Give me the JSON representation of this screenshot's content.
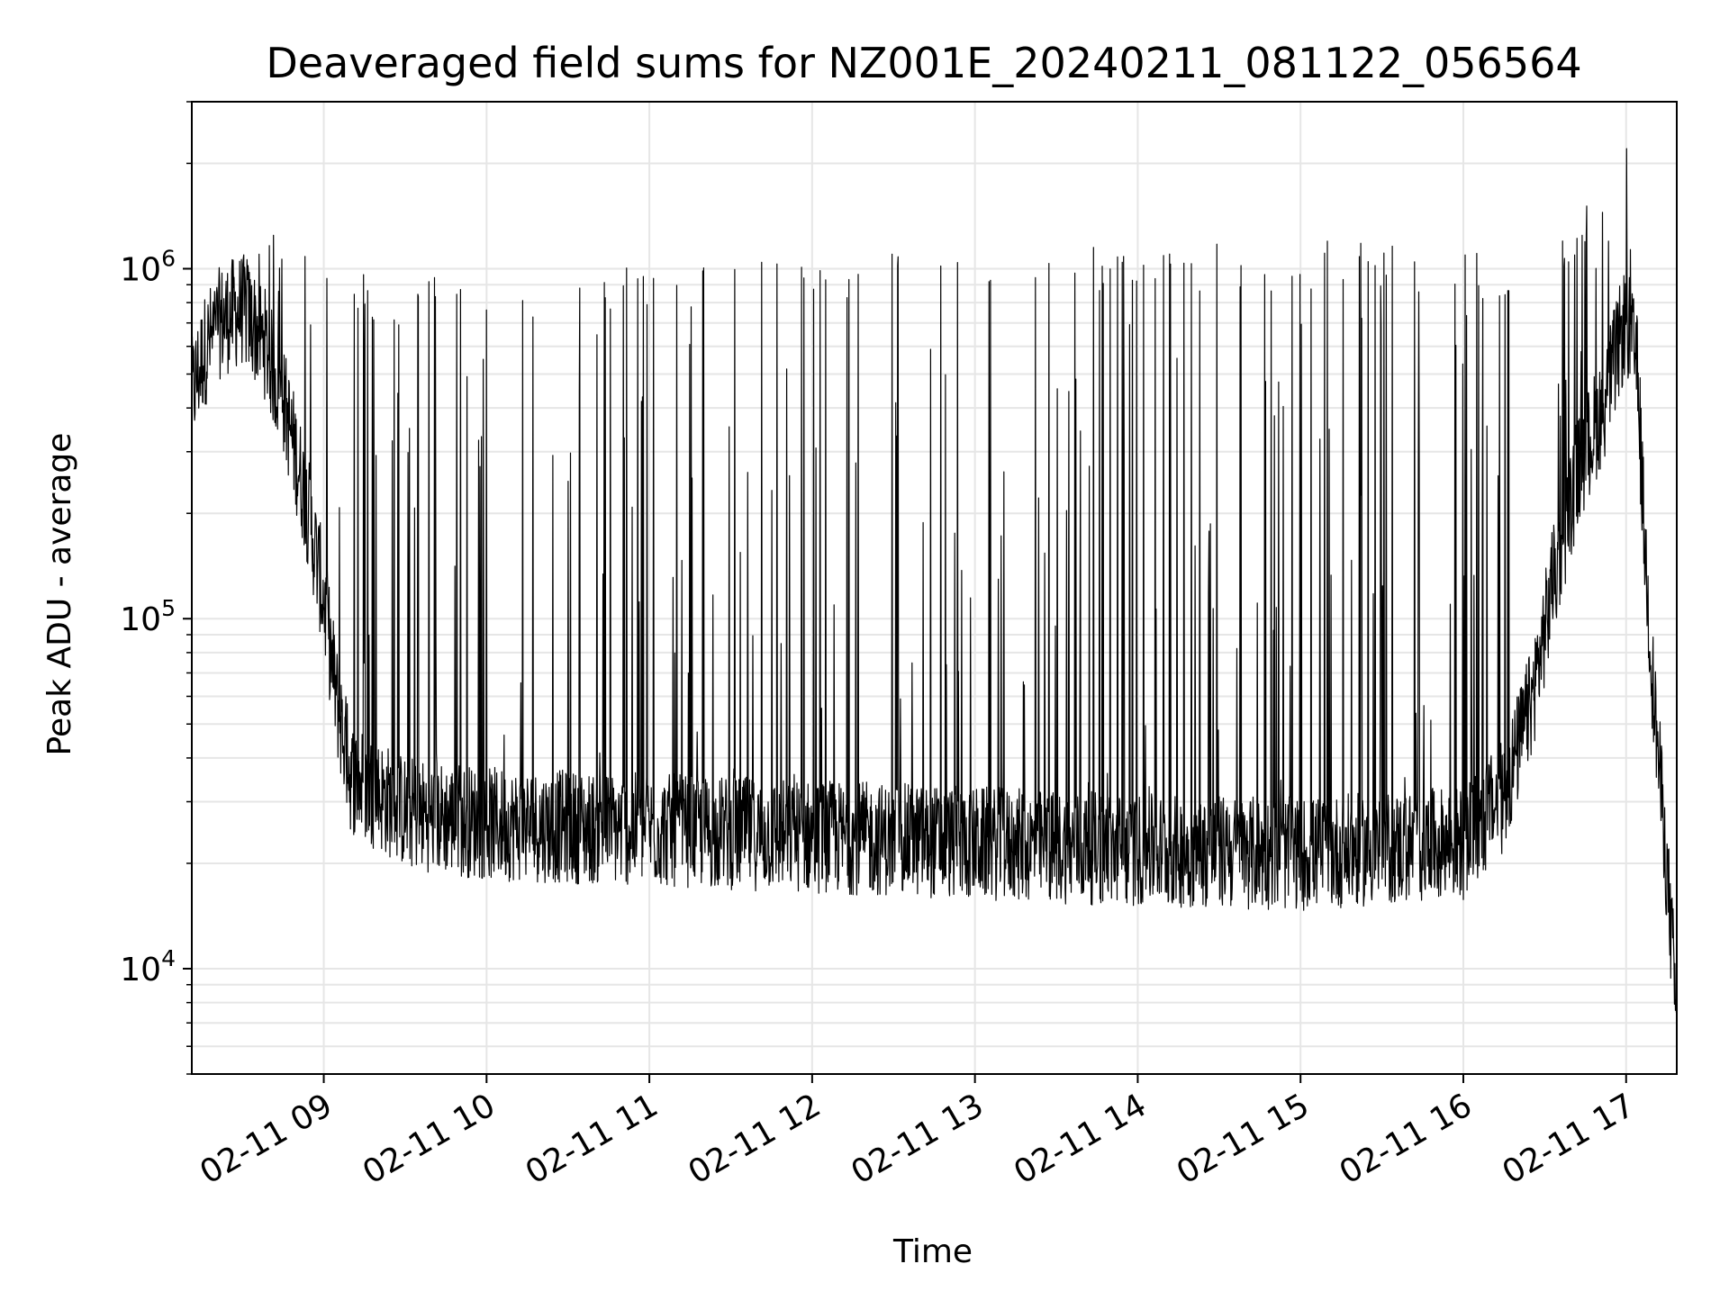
{
  "chart_data": {
    "type": "line",
    "title": "Deaveraged field sums for NZ001E_20240211_081122_056564",
    "xlabel": "Time",
    "ylabel": "Peak ADU - average",
    "x_tick_labels": [
      "02-11 09",
      "02-11 10",
      "02-11 11",
      "02-11 12",
      "02-11 13",
      "02-11 14",
      "02-11 15",
      "02-11 16",
      "02-11 17"
    ],
    "x_ticks": [
      "2024-02-11T09:00",
      "2024-02-11T10:00",
      "2024-02-11T11:00",
      "2024-02-11T12:00",
      "2024-02-11T13:00",
      "2024-02-11T14:00",
      "2024-02-11T15:00",
      "2024-02-11T16:00",
      "2024-02-11T17:00"
    ],
    "xlim": [
      "2024-02-11T08:11:22",
      "2024-02-11T17:18:40"
    ],
    "y_scale": "log",
    "ylim": [
      5000,
      3000000
    ],
    "y_ticks": [
      {
        "value": 10000,
        "base": "10",
        "exp": "4"
      },
      {
        "value": 100000,
        "base": "10",
        "exp": "5"
      },
      {
        "value": 1000000,
        "base": "10",
        "exp": "6"
      }
    ],
    "grid": true,
    "line_color": "#000000",
    "series": [
      {
        "envelope": [
          {
            "t": "2024-02-11T08:11:22",
            "base": 420000,
            "peak": 460000
          },
          {
            "t": "2024-02-11T08:16:00",
            "base": 560000,
            "peak": 640000
          },
          {
            "t": "2024-02-11T08:22:00",
            "base": 680000,
            "peak": 820000
          },
          {
            "t": "2024-02-11T08:30:00",
            "base": 740000,
            "peak": 1100000
          },
          {
            "t": "2024-02-11T08:38:00",
            "base": 600000,
            "peak": 1200000
          },
          {
            "t": "2024-02-11T08:46:00",
            "base": 380000,
            "peak": 1300000
          },
          {
            "t": "2024-02-11T08:54:00",
            "base": 200000,
            "peak": 1250000
          },
          {
            "t": "2024-02-11T09:00:00",
            "base": 110000,
            "peak": 1150000
          },
          {
            "t": "2024-02-11T09:05:00",
            "base": 55000,
            "peak": 1000000
          },
          {
            "t": "2024-02-11T09:10:00",
            "base": 34000,
            "peak": 950000
          },
          {
            "t": "2024-02-11T09:30:00",
            "base": 27000,
            "peak": 900000
          },
          {
            "t": "2024-02-11T10:00:00",
            "base": 25000,
            "peak": 950000
          },
          {
            "t": "2024-02-11T11:00:00",
            "base": 24000,
            "peak": 1000000
          },
          {
            "t": "2024-02-11T12:00:00",
            "base": 23000,
            "peak": 1050000
          },
          {
            "t": "2024-02-11T13:00:00",
            "base": 22000,
            "peak": 1100000
          },
          {
            "t": "2024-02-11T14:00:00",
            "base": 21000,
            "peak": 1150000
          },
          {
            "t": "2024-02-11T15:00:00",
            "base": 20500,
            "peak": 1150000
          },
          {
            "t": "2024-02-11T16:00:00",
            "base": 22000,
            "peak": 1100000
          },
          {
            "t": "2024-02-11T16:15:00",
            "base": 30000,
            "peak": 1000000
          },
          {
            "t": "2024-02-11T16:25:00",
            "base": 55000,
            "peak": 900000
          },
          {
            "t": "2024-02-11T16:33:00",
            "base": 120000,
            "peak": 1000000
          },
          {
            "t": "2024-02-11T16:42:00",
            "base": 250000,
            "peak": 1500000
          },
          {
            "t": "2024-02-11T16:52:00",
            "base": 400000,
            "peak": 1400000
          },
          {
            "t": "2024-02-11T17:00:00",
            "base": 700000,
            "peak": 2200000
          },
          {
            "t": "2024-02-11T17:04:00",
            "base": 500000,
            "peak": 1000000
          },
          {
            "t": "2024-02-11T17:07:00",
            "base": 150000,
            "peak": 200000
          },
          {
            "t": "2024-02-11T17:10:00",
            "base": 60000,
            "peak": 75000
          },
          {
            "t": "2024-02-11T17:14:00",
            "base": 24000,
            "peak": 30000
          },
          {
            "t": "2024-02-11T17:18:40",
            "base": 7000,
            "peak": 9000
          }
        ]
      }
    ]
  }
}
